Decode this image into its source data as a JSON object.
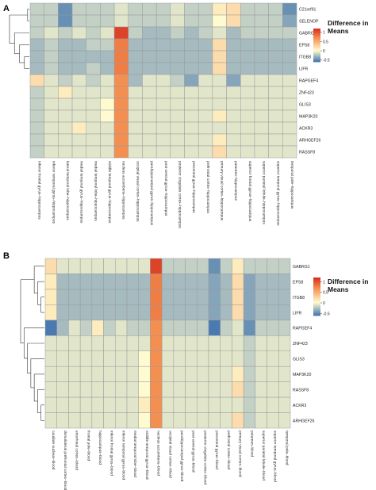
{
  "chart_data": [
    {
      "type": "heatmap",
      "panel_label": "A",
      "legend_title": [
        "Difference in",
        "Means"
      ],
      "legend_ticks": [
        1,
        0.5,
        0,
        -0.5
      ],
      "color_scale": {
        "min": -0.6,
        "max": 1.2,
        "low": "#4a7ab0",
        "mid": "#fffbd0",
        "high": "#d7301f"
      },
      "rows": [
        "C21orf91",
        "SELENOP",
        "GABRG1",
        "EPS8",
        "ITGB8",
        "LIFR",
        "RAPGEF4",
        "ZNF423",
        "GLIS3",
        "MAP3K20",
        "ACKR3",
        "ARHGEF26",
        "RASSF8"
      ],
      "columns": [
        "inferior frontal gyrus–hippocampus",
        "inferior temporal gyrus–hippocampus",
        "lateral temporal lobe–hippocampus",
        "medial temporal gyrus–hippocampus",
        "medial temporal lobe–hippocampus",
        "middle temporal gyrus–hippocampus",
        "nucleus accumbens–hippocampus",
        "occipital visual cortex–hippocampus",
        "parahippocampal gyrus–hippocampus",
        "post-central gyrus–hippocampus",
        "posterior cingulate cortex–hippocampus",
        "precentral gyrus–hippocampus",
        "prefrontal cortex–hippocampus",
        "primary visual cortex–hippocampus",
        "putamen–hippocampus",
        "superior frontal gyrus–hippocampus",
        "superior parietal lobule–hippocampus",
        "superior temporal gyrus–hippocampus",
        "temporal pole–hippocampus"
      ],
      "values": [
        [
          -0.2,
          -0.2,
          -0.5,
          -0.2,
          -0.2,
          -0.2,
          -0.1,
          -0.2,
          -0.2,
          -0.2,
          -0.1,
          -0.2,
          -0.2,
          0.1,
          0.2,
          -0.2,
          -0.2,
          -0.2,
          -0.5
        ],
        [
          -0.2,
          -0.2,
          -0.5,
          -0.2,
          -0.2,
          -0.2,
          -0.1,
          -0.2,
          -0.2,
          -0.2,
          -0.1,
          -0.2,
          -0.2,
          0.0,
          0.2,
          -0.2,
          -0.2,
          -0.2,
          -0.4
        ],
        [
          -0.2,
          -0.1,
          -0.2,
          -0.1,
          -0.2,
          -0.1,
          1.1,
          -0.2,
          -0.3,
          -0.3,
          -0.2,
          -0.3,
          -0.2,
          -0.1,
          -0.3,
          -0.2,
          -0.2,
          -0.2,
          -0.2
        ],
        [
          -0.3,
          -0.2,
          -0.3,
          -0.3,
          -0.2,
          -0.2,
          0.8,
          -0.3,
          -0.3,
          -0.3,
          -0.3,
          -0.3,
          -0.3,
          0.2,
          -0.3,
          -0.3,
          -0.3,
          -0.3,
          -0.3
        ],
        [
          -0.3,
          -0.2,
          -0.3,
          -0.3,
          -0.3,
          -0.3,
          0.8,
          -0.3,
          -0.3,
          -0.3,
          -0.3,
          -0.3,
          -0.3,
          0.2,
          -0.3,
          -0.3,
          -0.3,
          -0.3,
          -0.3
        ],
        [
          -0.3,
          -0.2,
          -0.3,
          -0.3,
          -0.2,
          -0.3,
          0.8,
          -0.3,
          -0.3,
          -0.3,
          -0.3,
          -0.3,
          -0.3,
          0.2,
          -0.3,
          -0.3,
          -0.3,
          -0.3,
          -0.3
        ],
        [
          0.2,
          -0.1,
          -0.2,
          -0.1,
          -0.2,
          -0.1,
          0.7,
          -0.3,
          -0.1,
          -0.1,
          -0.2,
          -0.4,
          -0.1,
          -0.1,
          -0.4,
          -0.1,
          -0.1,
          -0.1,
          -0.1
        ],
        [
          -0.2,
          -0.1,
          0.1,
          -0.1,
          -0.1,
          -0.1,
          0.7,
          -0.1,
          -0.1,
          -0.1,
          -0.1,
          -0.1,
          -0.1,
          -0.1,
          -0.1,
          -0.1,
          -0.1,
          -0.1,
          -0.1
        ],
        [
          -0.2,
          -0.1,
          -0.1,
          -0.1,
          -0.1,
          0.0,
          0.7,
          -0.1,
          -0.1,
          -0.1,
          -0.1,
          -0.1,
          -0.1,
          -0.1,
          -0.1,
          -0.1,
          -0.1,
          -0.1,
          -0.1
        ],
        [
          -0.2,
          -0.1,
          -0.1,
          -0.1,
          -0.1,
          0.0,
          0.7,
          -0.1,
          -0.1,
          -0.1,
          -0.1,
          -0.1,
          -0.1,
          0.1,
          -0.1,
          -0.1,
          -0.1,
          -0.1,
          -0.1
        ],
        [
          -0.2,
          -0.1,
          -0.1,
          0.1,
          -0.1,
          -0.1,
          0.7,
          -0.1,
          -0.1,
          -0.1,
          -0.1,
          -0.1,
          -0.1,
          -0.1,
          -0.1,
          -0.1,
          -0.1,
          -0.1,
          -0.1
        ],
        [
          -0.2,
          -0.1,
          -0.1,
          -0.1,
          -0.1,
          -0.1,
          0.7,
          -0.1,
          -0.1,
          -0.1,
          -0.1,
          -0.1,
          -0.1,
          0.1,
          -0.1,
          -0.1,
          -0.1,
          -0.1,
          -0.1
        ],
        [
          -0.2,
          -0.1,
          -0.1,
          -0.1,
          -0.1,
          -0.1,
          0.7,
          -0.1,
          -0.1,
          -0.1,
          -0.1,
          -0.1,
          -0.1,
          0.2,
          -0.1,
          -0.1,
          -0.1,
          -0.1,
          -0.1
        ]
      ]
    },
    {
      "type": "heatmap",
      "panel_label": "B",
      "legend_title": [
        "Difference in",
        "Means"
      ],
      "legend_ticks": [
        1,
        0.5,
        0,
        -0.5
      ],
      "color_scale": {
        "min": -0.6,
        "max": 1.2,
        "low": "#4a7ab0",
        "mid": "#fffbd0",
        "high": "#d7301f"
      },
      "rows": [
        "GABRG1",
        "EPS8",
        "ITGB8",
        "LIFR",
        "RAPGEF4",
        "ZNF423",
        "GLIS3",
        "MAP3K20",
        "RASSF8",
        "ACKR3",
        "ARHGEF26"
      ],
      "columns": [
        "caudate nucleus–blood",
        "dorsolateral prefrontal cortex–blood",
        "entorhinal cortex–blood",
        "frontal pole–blood",
        "hippocampus–blood",
        "inferior frontal gyrus–blood",
        "inferior temporal gyrus–blood",
        "medial temporal lobe–blood",
        "middle temporal gyrus–blood",
        "nucleus accumbens–blood",
        "occipital visual cortex–blood",
        "parahippocampal gyrus–blood",
        "post-central gyrus–blood",
        "posterior cingulate cortex–blood",
        "precentral gyrus–blood",
        "prefrontal cortex–blood",
        "primary visual cortex–blood",
        "putamen–blood",
        "superior parietal lobule–blood",
        "superior temporal gyrus–blood",
        "temporal pole–blood"
      ],
      "values": [
        [
          0.2,
          -0.1,
          -0.1,
          -0.1,
          -0.1,
          -0.1,
          -0.1,
          -0.1,
          -0.1,
          1.1,
          -0.2,
          -0.2,
          -0.2,
          -0.2,
          -0.5,
          -0.2,
          0.1,
          -0.2,
          -0.2,
          -0.2,
          -0.2
        ],
        [
          0.1,
          -0.3,
          -0.3,
          -0.3,
          -0.3,
          -0.3,
          -0.3,
          -0.3,
          -0.3,
          0.8,
          -0.3,
          -0.3,
          -0.3,
          -0.3,
          -0.4,
          -0.3,
          0.2,
          -0.4,
          -0.3,
          -0.3,
          -0.3
        ],
        [
          0.1,
          -0.3,
          -0.3,
          -0.3,
          -0.3,
          -0.3,
          -0.3,
          -0.3,
          -0.3,
          0.8,
          -0.3,
          -0.3,
          -0.3,
          -0.3,
          -0.4,
          -0.3,
          0.2,
          -0.4,
          -0.3,
          -0.3,
          -0.3
        ],
        [
          0.1,
          -0.3,
          -0.3,
          -0.3,
          -0.3,
          -0.3,
          -0.3,
          -0.3,
          -0.3,
          0.8,
          -0.3,
          -0.3,
          -0.3,
          -0.3,
          -0.4,
          -0.3,
          0.2,
          -0.4,
          -0.3,
          -0.3,
          -0.3
        ],
        [
          -0.6,
          -0.3,
          -0.1,
          -0.2,
          0.1,
          -0.2,
          -0.1,
          -0.2,
          -0.2,
          0.7,
          -0.2,
          -0.2,
          -0.2,
          -0.2,
          -0.6,
          -0.2,
          -0.1,
          -0.5,
          -0.2,
          -0.2,
          -0.2
        ],
        [
          -0.1,
          -0.1,
          -0.1,
          -0.1,
          -0.1,
          -0.1,
          -0.1,
          -0.1,
          -0.1,
          0.7,
          -0.1,
          -0.1,
          -0.1,
          -0.1,
          -0.1,
          -0.1,
          -0.1,
          -0.2,
          -0.1,
          -0.1,
          -0.1
        ],
        [
          -0.1,
          -0.1,
          -0.1,
          -0.1,
          -0.1,
          -0.1,
          -0.1,
          -0.1,
          0.0,
          0.7,
          -0.1,
          -0.1,
          -0.1,
          -0.1,
          -0.1,
          -0.1,
          -0.1,
          -0.2,
          -0.1,
          -0.1,
          -0.1
        ],
        [
          -0.1,
          -0.1,
          -0.1,
          -0.1,
          -0.1,
          -0.1,
          -0.1,
          -0.1,
          0.0,
          0.7,
          -0.1,
          -0.1,
          -0.1,
          -0.1,
          -0.1,
          -0.1,
          0.1,
          -0.2,
          -0.1,
          -0.1,
          -0.1
        ],
        [
          -0.1,
          -0.1,
          -0.1,
          -0.1,
          -0.1,
          -0.1,
          -0.1,
          -0.1,
          0.0,
          0.7,
          -0.1,
          -0.1,
          -0.1,
          -0.1,
          -0.1,
          -0.1,
          0.2,
          -0.2,
          -0.1,
          -0.1,
          -0.1
        ],
        [
          -0.1,
          -0.1,
          -0.1,
          -0.1,
          -0.1,
          -0.1,
          -0.1,
          -0.1,
          0.1,
          0.7,
          -0.1,
          -0.1,
          -0.1,
          -0.1,
          -0.1,
          -0.1,
          -0.1,
          -0.2,
          -0.1,
          -0.1,
          -0.1
        ],
        [
          -0.1,
          -0.1,
          -0.1,
          -0.1,
          -0.1,
          -0.1,
          -0.1,
          -0.1,
          0.0,
          0.7,
          -0.1,
          -0.1,
          -0.1,
          -0.1,
          -0.1,
          -0.1,
          0.2,
          -0.2,
          -0.1,
          -0.1,
          -0.1
        ]
      ]
    }
  ]
}
